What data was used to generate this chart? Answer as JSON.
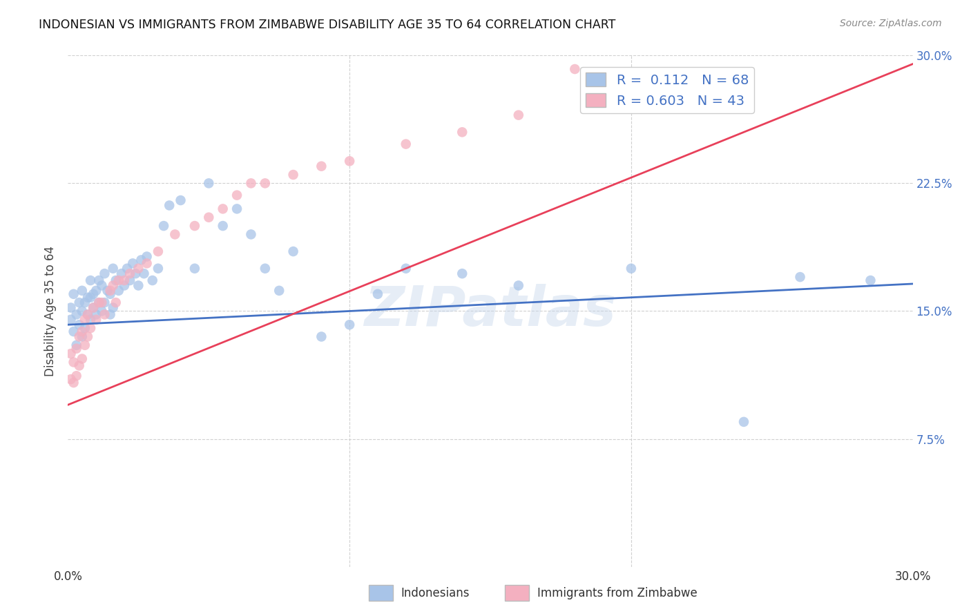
{
  "title": "INDONESIAN VS IMMIGRANTS FROM ZIMBABWE DISABILITY AGE 35 TO 64 CORRELATION CHART",
  "source": "Source: ZipAtlas.com",
  "ylabel": "Disability Age 35 to 64",
  "xlim": [
    0.0,
    0.3
  ],
  "ylim": [
    0.0,
    0.3
  ],
  "background_color": "#ffffff",
  "grid_color": "#d0d0d0",
  "watermark": "ZIPatlas",
  "indonesian_color": "#a8c4e8",
  "zimbabwe_color": "#f4b0c0",
  "indonesian_line_color": "#4472c4",
  "zimbabwe_line_color": "#e8405a",
  "R_indonesian": 0.112,
  "N_indonesian": 68,
  "R_zimbabwe": 0.603,
  "N_zimbabwe": 43,
  "ind_line_x0": 0.0,
  "ind_line_x1": 0.3,
  "ind_line_y0": 0.142,
  "ind_line_y1": 0.166,
  "zim_line_x0": 0.0,
  "zim_line_x1": 0.3,
  "zim_line_y0": 0.095,
  "zim_line_y1": 0.295,
  "indonesian_x": [
    0.001,
    0.001,
    0.002,
    0.002,
    0.003,
    0.003,
    0.004,
    0.004,
    0.005,
    0.005,
    0.005,
    0.006,
    0.006,
    0.007,
    0.007,
    0.008,
    0.008,
    0.008,
    0.009,
    0.009,
    0.01,
    0.01,
    0.011,
    0.011,
    0.012,
    0.012,
    0.013,
    0.013,
    0.014,
    0.015,
    0.015,
    0.016,
    0.016,
    0.017,
    0.018,
    0.019,
    0.02,
    0.021,
    0.022,
    0.023,
    0.024,
    0.025,
    0.026,
    0.027,
    0.028,
    0.03,
    0.032,
    0.034,
    0.036,
    0.04,
    0.045,
    0.05,
    0.055,
    0.06,
    0.065,
    0.07,
    0.075,
    0.08,
    0.09,
    0.1,
    0.11,
    0.12,
    0.14,
    0.16,
    0.2,
    0.24,
    0.26,
    0.285
  ],
  "indonesian_y": [
    0.145,
    0.152,
    0.138,
    0.16,
    0.13,
    0.148,
    0.142,
    0.155,
    0.135,
    0.15,
    0.162,
    0.14,
    0.155,
    0.148,
    0.158,
    0.145,
    0.158,
    0.168,
    0.152,
    0.16,
    0.148,
    0.162,
    0.155,
    0.168,
    0.15,
    0.165,
    0.155,
    0.172,
    0.162,
    0.148,
    0.16,
    0.175,
    0.152,
    0.168,
    0.162,
    0.172,
    0.165,
    0.175,
    0.168,
    0.178,
    0.172,
    0.165,
    0.18,
    0.172,
    0.182,
    0.168,
    0.175,
    0.2,
    0.212,
    0.215,
    0.175,
    0.225,
    0.2,
    0.21,
    0.195,
    0.175,
    0.162,
    0.185,
    0.135,
    0.142,
    0.16,
    0.175,
    0.172,
    0.165,
    0.175,
    0.085,
    0.17,
    0.168
  ],
  "zimbabwe_x": [
    0.001,
    0.001,
    0.002,
    0.002,
    0.003,
    0.003,
    0.004,
    0.004,
    0.005,
    0.005,
    0.006,
    0.006,
    0.007,
    0.007,
    0.008,
    0.009,
    0.01,
    0.011,
    0.012,
    0.013,
    0.015,
    0.016,
    0.017,
    0.018,
    0.02,
    0.022,
    0.025,
    0.028,
    0.032,
    0.038,
    0.045,
    0.05,
    0.055,
    0.06,
    0.065,
    0.07,
    0.08,
    0.09,
    0.1,
    0.12,
    0.14,
    0.16,
    0.18
  ],
  "zimbabwe_y": [
    0.11,
    0.125,
    0.108,
    0.12,
    0.112,
    0.128,
    0.118,
    0.135,
    0.122,
    0.138,
    0.13,
    0.145,
    0.135,
    0.148,
    0.14,
    0.152,
    0.145,
    0.155,
    0.155,
    0.148,
    0.162,
    0.165,
    0.155,
    0.168,
    0.168,
    0.172,
    0.175,
    0.178,
    0.185,
    0.195,
    0.2,
    0.205,
    0.21,
    0.218,
    0.225,
    0.225,
    0.23,
    0.235,
    0.238,
    0.248,
    0.255,
    0.265,
    0.292
  ]
}
